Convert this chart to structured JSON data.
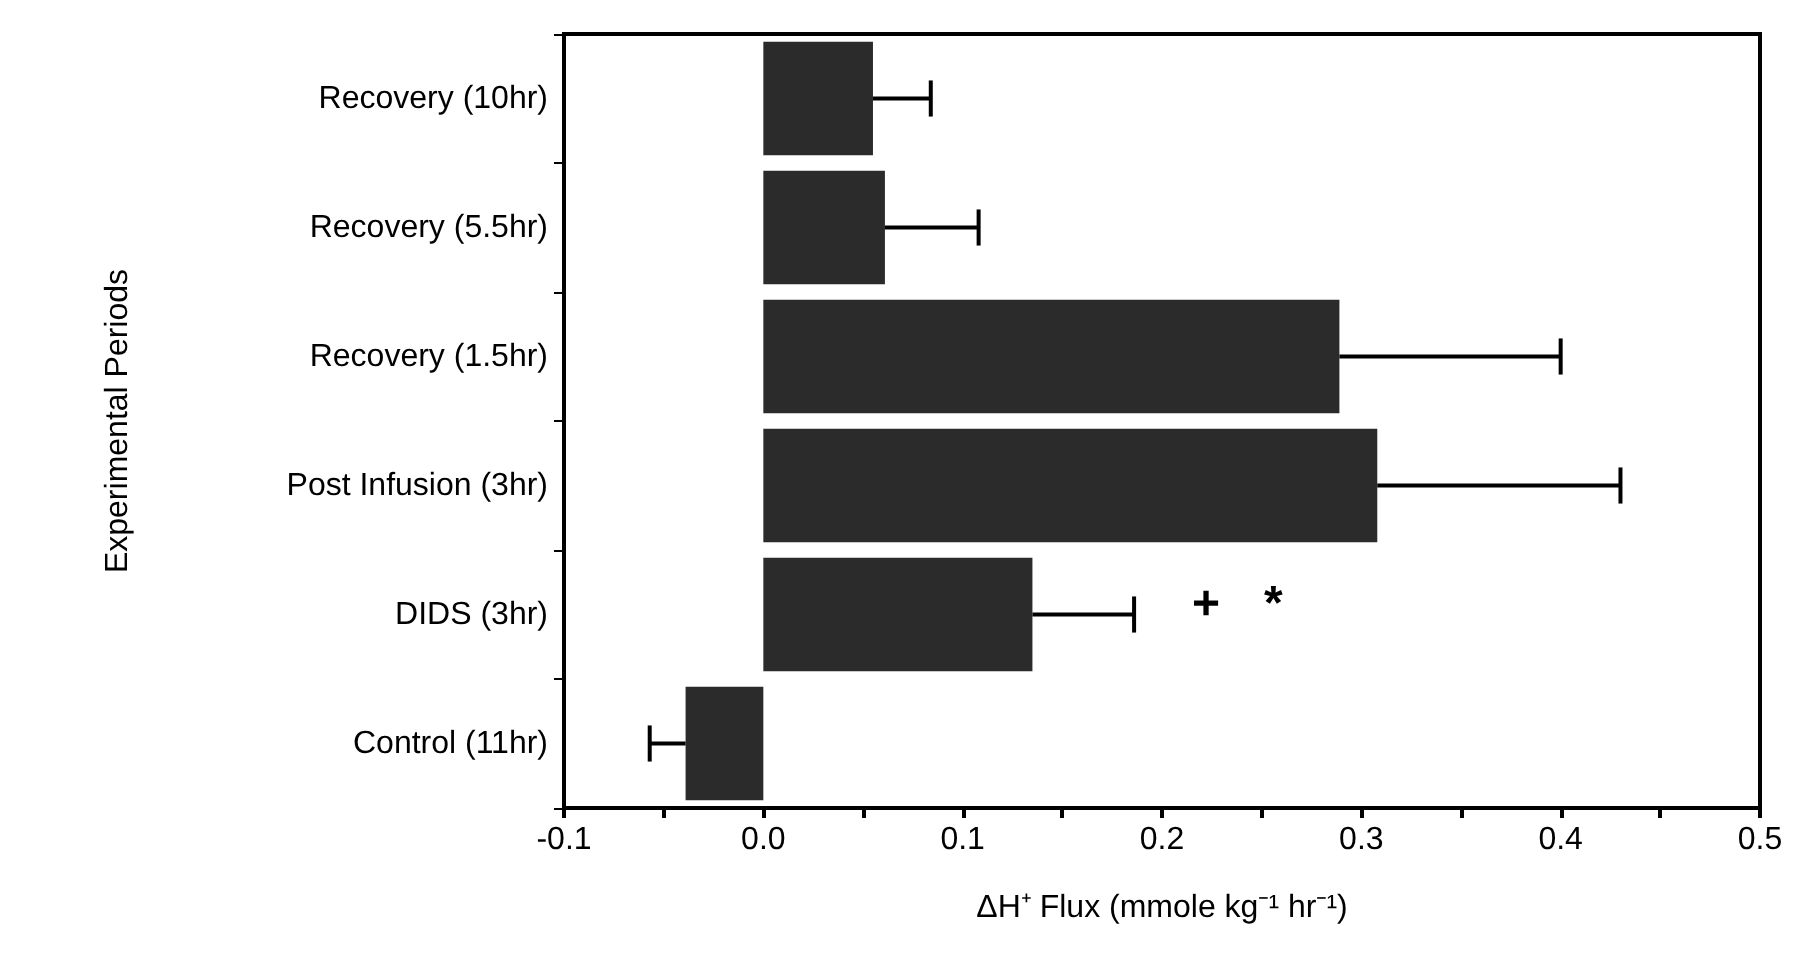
{
  "chart_data": {
    "type": "bar",
    "orientation": "horizontal",
    "xlabel": "ΔH⁺ Flux (mmole kg⁻¹ hr⁻¹)",
    "ylabel": "Experimental Periods",
    "categories": [
      "Recovery (10hr)",
      "Recovery (5.5hr)",
      "Recovery (1.5hr)",
      "Post Infusion (3hr)",
      "DIDS (3hr)",
      "Control (11hr)"
    ],
    "values": [
      0.055,
      0.061,
      0.289,
      0.308,
      0.135,
      -0.039
    ],
    "errors": [
      [
        0.055,
        0.084
      ],
      [
        0.061,
        0.108
      ],
      [
        0.289,
        0.4
      ],
      [
        0.308,
        0.43
      ],
      [
        0.135,
        0.186
      ],
      [
        -0.057,
        -0.039
      ]
    ],
    "color": "#2b2b2b",
    "xlim": [
      -0.1,
      0.5
    ],
    "xticks": [
      -0.1,
      {
        "value": -0.05,
        "label": null
      },
      {
        "value": 0,
        "label": "0.0"
      },
      {
        "value": 0.05,
        "label": null
      },
      0.1,
      {
        "value": 0.15,
        "label": null
      },
      0.2,
      {
        "value": 0.25,
        "label": null
      },
      0.3,
      {
        "value": 0.35,
        "label": null
      },
      0.4,
      {
        "value": 0.45,
        "label": null
      },
      0.5
    ],
    "annotations": [
      "+",
      "*"
    ],
    "grid": false
  }
}
